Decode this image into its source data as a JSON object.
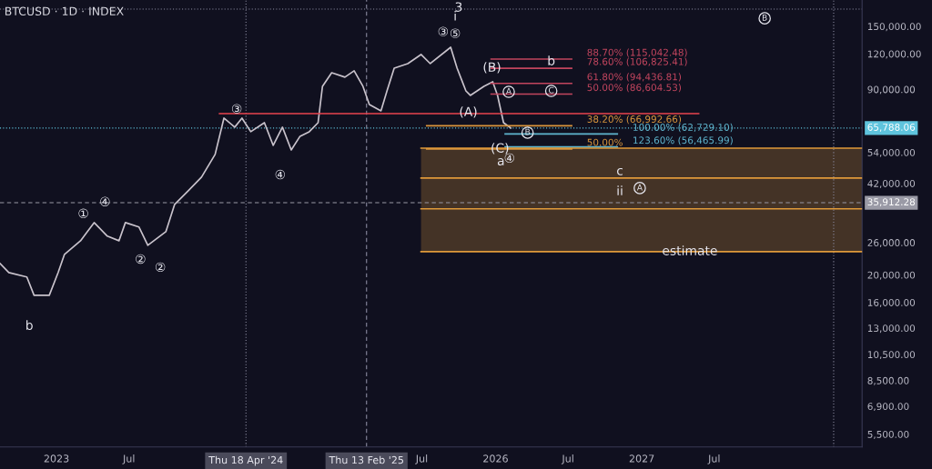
{
  "chart_data": {
    "type": "line",
    "title": "BTCUSD · 1D · INDEX",
    "log": "y",
    "grid": false,
    "xlim": [
      "2022-08-13",
      "2028-07-04"
    ],
    "xticks": [
      {
        "value": "2023-01-01",
        "label": "2023"
      },
      {
        "value": "2023-07-01",
        "label": "Jul"
      },
      {
        "value": "2025-07-01",
        "label": "Jul"
      },
      {
        "value": "2026-01-01",
        "label": "2026"
      },
      {
        "value": "2026-07-01",
        "label": "Jul"
      },
      {
        "value": "2027-01-01",
        "label": "2027"
      },
      {
        "value": "2027-07-01",
        "label": "Jul"
      }
    ],
    "ylim": [
      4960,
      185700
    ],
    "yticks": [
      {
        "value": 5500,
        "label": "5,500.00"
      },
      {
        "value": 6900,
        "label": "6,900.00"
      },
      {
        "value": 8500,
        "label": "8,500.00"
      },
      {
        "value": 10500,
        "label": "10,500.00"
      },
      {
        "value": 13000,
        "label": "13,000.00"
      },
      {
        "value": 16000,
        "label": "16,000.00"
      },
      {
        "value": 20000,
        "label": "20,000.00"
      },
      {
        "value": 26000,
        "label": "26,000.00"
      },
      {
        "value": 42000,
        "label": "42,000.00"
      },
      {
        "value": 54000,
        "label": "54,000.00"
      },
      {
        "value": 90000,
        "label": "90,000.00"
      },
      {
        "value": 120000,
        "label": "120,000.00"
      },
      {
        "value": 150000,
        "label": "150,000.00"
      }
    ],
    "series": [
      {
        "color": "#c9c3cc",
        "x": [
          "2022-08-13",
          "2022-09-04",
          "2022-10-19",
          "2022-11-06",
          "2022-12-14",
          "2023-01-05",
          "2023-01-21",
          "2023-03-02",
          "2023-04-05",
          "2023-05-08",
          "2023-06-06",
          "2023-06-22",
          "2023-07-26",
          "2023-08-17",
          "2023-10-01",
          "2023-10-23",
          "2023-11-26",
          "2023-12-29",
          "2024-02-01",
          "2024-02-23",
          "2024-03-21",
          "2024-04-08",
          "2024-04-30",
          "2024-06-03",
          "2024-06-25",
          "2024-07-18",
          "2024-08-09",
          "2024-08-31",
          "2024-09-23",
          "2024-10-15",
          "2024-10-26",
          "2024-11-18",
          "2024-12-21",
          "2025-01-13",
          "2025-02-04",
          "2025-02-20",
          "2025-03-21",
          "2025-04-05",
          "2025-04-23",
          "2025-05-27",
          "2025-06-29",
          "2025-07-22",
          "2025-09-11",
          "2025-09-27",
          "2025-10-19",
          "2025-10-30",
          "2025-12-03",
          "2025-12-25",
          "2026-01-06",
          "2026-01-21",
          "2026-02-08"
        ],
        "values": [
          21950,
          20380,
          19670,
          16960,
          16960,
          20380,
          23630,
          26380,
          30570,
          27380,
          26380,
          30570,
          29480,
          25430,
          28400,
          35430,
          39560,
          44190,
          53120,
          71300,
          66260,
          71300,
          63860,
          68710,
          57150,
          66260,
          55080,
          61540,
          63860,
          68710,
          92270,
          103000,
          99350,
          104600,
          92270,
          79640,
          75620,
          88920,
          106900,
          110900,
          119400,
          110900,
          126600,
          106900,
          88920,
          85710,
          92270,
          95730,
          85710,
          68710,
          65788
        ]
      },
      {
        "color": "#e8434f",
        "x": [
          "2024-02-12",
          "2027-05-23"
        ],
        "values": [
          73960,
          73960
        ]
      },
      {
        "name": "88.70% (115,042.48)",
        "color": "#c2455e",
        "x": [
          "2025-12-21",
          "2026-07-10"
        ],
        "values": [
          115042.48,
          115042.48
        ]
      },
      {
        "name": "78.60% (106,825.41)",
        "color": "#c2455e",
        "x": [
          "2025-12-21",
          "2026-07-10"
        ],
        "values": [
          106825.41,
          106825.41
        ]
      },
      {
        "name": "61.80% (94,436.81)",
        "color": "#c2455e",
        "x": [
          "2025-12-21",
          "2026-07-10"
        ],
        "values": [
          94436.81,
          94436.81
        ]
      },
      {
        "name": "50.00% (86,604.53)",
        "color": "#c2455e",
        "x": [
          "2025-12-21",
          "2026-07-10"
        ],
        "values": [
          86604.53,
          86604.53
        ]
      },
      {
        "name": "38.20% (66,992.66)",
        "color": "#d9953c",
        "x": [
          "2025-07-13",
          "2026-07-10"
        ],
        "values": [
          66992.66,
          66992.66
        ]
      },
      {
        "name": "100.00% (62,729.10)",
        "color": "#5fb6cf",
        "x": [
          "2026-01-25",
          "2026-11-01"
        ],
        "values": [
          62729.1,
          62729.1
        ]
      },
      {
        "name": "123.60% (56,465.99)",
        "color": "#5fb6cf",
        "x": [
          "2026-01-25",
          "2026-11-01"
        ],
        "values": [
          56465.99,
          56465.99
        ]
      },
      {
        "name": "50.00%",
        "color": "#d9953c",
        "x": [
          "2025-07-13",
          "2026-07-10"
        ],
        "values": [
          55500,
          55500
        ]
      },
      {
        "color": "#e09a3a",
        "x": [
          "2025-06-29",
          "2028-07-04"
        ],
        "values": [
          55900,
          55900
        ]
      },
      {
        "color": "#e09a3a",
        "x": [
          "2025-06-29",
          "2028-07-04"
        ],
        "values": [
          43860,
          43860
        ],
        "lower": [
          24150,
          24150
        ],
        "upper": [
          55900,
          55900
        ]
      },
      {
        "color": "#e09a3a",
        "x": [
          "2025-06-29",
          "2028-07-04"
        ],
        "values": [
          34170,
          34170
        ]
      },
      {
        "color": "#e09a3a",
        "x": [
          "2025-06-29",
          "2028-07-04"
        ],
        "values": [
          24150,
          24150
        ]
      }
    ],
    "ref_lines": [
      {
        "axis": "y",
        "value": 65788.06,
        "label": "65,788.06",
        "color": "#5fc4dd",
        "line_style": "dotted"
      },
      {
        "axis": "y",
        "value": 35912.28,
        "label": "35,912.28",
        "color": "#9a9aa6",
        "line_style": "dashed"
      },
      {
        "axis": "y",
        "value": 172500,
        "color": "#8a8aa0",
        "line_style": "dotted"
      },
      {
        "axis": "x",
        "value": "2024-04-18",
        "label": "Thu 18 Apr '24",
        "color": "#8a8aa0",
        "line_style": "dotted"
      },
      {
        "axis": "x",
        "value": "2025-02-13",
        "label": "Thu 13 Feb '25",
        "color": "#8a8aa0",
        "line_style": "dashed"
      },
      {
        "axis": "x",
        "value": "2028-04-24",
        "color": "#8a8aa0",
        "line_style": "dotted"
      }
    ],
    "annotations": [
      "b",
      "3",
      "i",
      "a",
      "c",
      "ii",
      "①",
      "②",
      "②",
      "④",
      "③",
      "⑤",
      "B",
      "④",
      {
        "text": "④",
        "x": "2023-05-02",
        "y": 35930
      },
      {
        "text": "③",
        "x": "2024-03-26",
        "y": 76200
      },
      {
        "text": "(B)",
        "x": "2025-12-23",
        "y": 106900
      },
      {
        "text": "b",
        "x": "2026-05-20",
        "y": 112600
      },
      {
        "text": "C",
        "x": "2026-05-20",
        "y": 88920
      },
      {
        "text": "A",
        "x": "2026-02-03",
        "y": 88270
      },
      {
        "text": "(A)",
        "x": "2025-10-25",
        "y": 74520
      },
      {
        "text": "B",
        "x": "2026-03-22",
        "y": 63370
      },
      {
        "text": "(C)",
        "x": "2026-01-12",
        "y": 55500
      },
      {
        "text": "A",
        "x": "2026-12-27",
        "y": 40440
      },
      {
        "text": "estimate",
        "x": "2027-05-01",
        "y": 24150
      }
    ]
  }
}
